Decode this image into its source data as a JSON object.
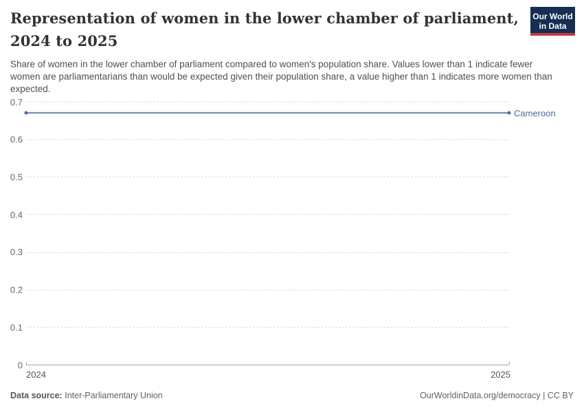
{
  "header": {
    "title": "Representation of women in the lower chamber of parliament, 2024 to 2025",
    "subtitle": "Share of women in the lower chamber of parliament compared to women's population share. Values lower than 1 indicate fewer women are parliamentarians than would be expected given their population share, a value higher than 1 indicates more women than expected.",
    "logo": {
      "line1": "Our World",
      "line2": "in Data",
      "bg_color": "#152e52",
      "accent_color": "#bb3b47"
    }
  },
  "chart_data": {
    "type": "line",
    "title": "Representation of women in the lower chamber of parliament, 2024 to 2025",
    "x": [
      2024,
      2025
    ],
    "xtick_labels": [
      "2024",
      "2025"
    ],
    "series": [
      {
        "name": "Cameroon",
        "values": [
          0.67,
          0.67
        ],
        "color": "#4C6A9C"
      }
    ],
    "ylim": [
      0,
      0.7
    ],
    "yticks": [
      0,
      0.1,
      0.2,
      0.3,
      0.4,
      0.5,
      0.6,
      0.7
    ],
    "grid": "horizontal-dashed",
    "gridline_color": "#dcdcdc",
    "axis_color": "#a5a5a5",
    "legend_position": "end-of-line-label"
  },
  "footer": {
    "source_label": "Data source:",
    "source_value": "Inter-Parliamentary Union",
    "credit": "OurWorldinData.org/democracy | CC BY"
  }
}
